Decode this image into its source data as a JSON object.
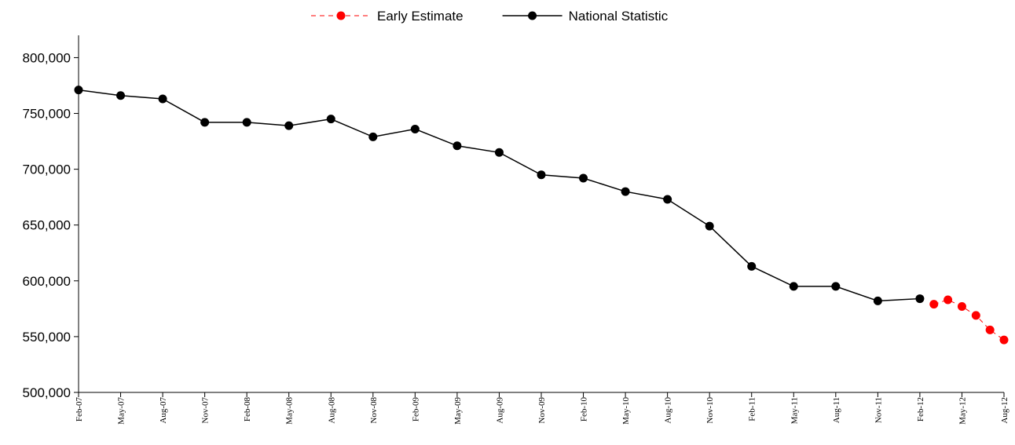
{
  "chart_data": {
    "type": "line",
    "categories": [
      "Feb-07",
      null,
      null,
      "May-07",
      null,
      null,
      "Aug-07",
      null,
      null,
      "Nov-07",
      null,
      null,
      "Feb-08",
      null,
      null,
      "May-08",
      null,
      null,
      "Aug-08",
      null,
      null,
      "Nov-08",
      null,
      null,
      "Feb-09",
      null,
      null,
      "May-09",
      null,
      null,
      "Aug-09",
      null,
      null,
      "Nov-09",
      null,
      null,
      "Feb-10",
      null,
      null,
      "May-10",
      null,
      null,
      "Aug-10",
      null,
      null,
      "Nov-10",
      null,
      null,
      "Feb-11",
      null,
      null,
      "May-11",
      null,
      null,
      "Aug-11",
      null,
      null,
      "Nov-11",
      null,
      null,
      "Feb-12",
      null,
      null,
      "May-12",
      null,
      null,
      "Aug-12"
    ],
    "series": [
      {
        "name": "Early Estimate",
        "color": "#ff0000",
        "dashed": true,
        "values": [
          null,
          null,
          null,
          null,
          null,
          null,
          null,
          null,
          null,
          null,
          null,
          null,
          null,
          null,
          null,
          null,
          null,
          null,
          null,
          null,
          null,
          null,
          null,
          null,
          null,
          null,
          null,
          null,
          null,
          null,
          null,
          null,
          null,
          null,
          null,
          null,
          null,
          null,
          null,
          null,
          null,
          null,
          null,
          null,
          null,
          null,
          null,
          null,
          null,
          null,
          null,
          null,
          null,
          null,
          null,
          null,
          null,
          null,
          null,
          null,
          null,
          579000,
          583000,
          577000,
          569000,
          556000,
          547000
        ]
      },
      {
        "name": "National Statistic",
        "color": "#000000",
        "dashed": false,
        "values": [
          771000,
          null,
          null,
          766000,
          null,
          null,
          763000,
          null,
          null,
          742000,
          null,
          null,
          742000,
          null,
          null,
          739000,
          null,
          null,
          745000,
          null,
          null,
          729000,
          null,
          null,
          736000,
          null,
          null,
          721000,
          null,
          null,
          715000,
          null,
          null,
          695000,
          null,
          null,
          692000,
          null,
          null,
          680000,
          null,
          null,
          673000,
          null,
          null,
          649000,
          null,
          null,
          613000,
          null,
          null,
          595000,
          null,
          null,
          595000,
          null,
          null,
          582000,
          null,
          null,
          584000,
          null,
          null,
          null,
          null,
          null,
          null
        ]
      }
    ],
    "span_gaps": true,
    "ylim": [
      500000,
      820000
    ],
    "yticks": [
      {
        "value": 500000,
        "label": "500,000"
      },
      {
        "value": 550000,
        "label": "550,000"
      },
      {
        "value": 600000,
        "label": "600,000"
      },
      {
        "value": 650000,
        "label": "650,000"
      },
      {
        "value": 700000,
        "label": "700,000"
      },
      {
        "value": 750000,
        "label": "750,000"
      },
      {
        "value": 800000,
        "label": "800,000"
      }
    ],
    "grid": false,
    "legend": "top"
  }
}
